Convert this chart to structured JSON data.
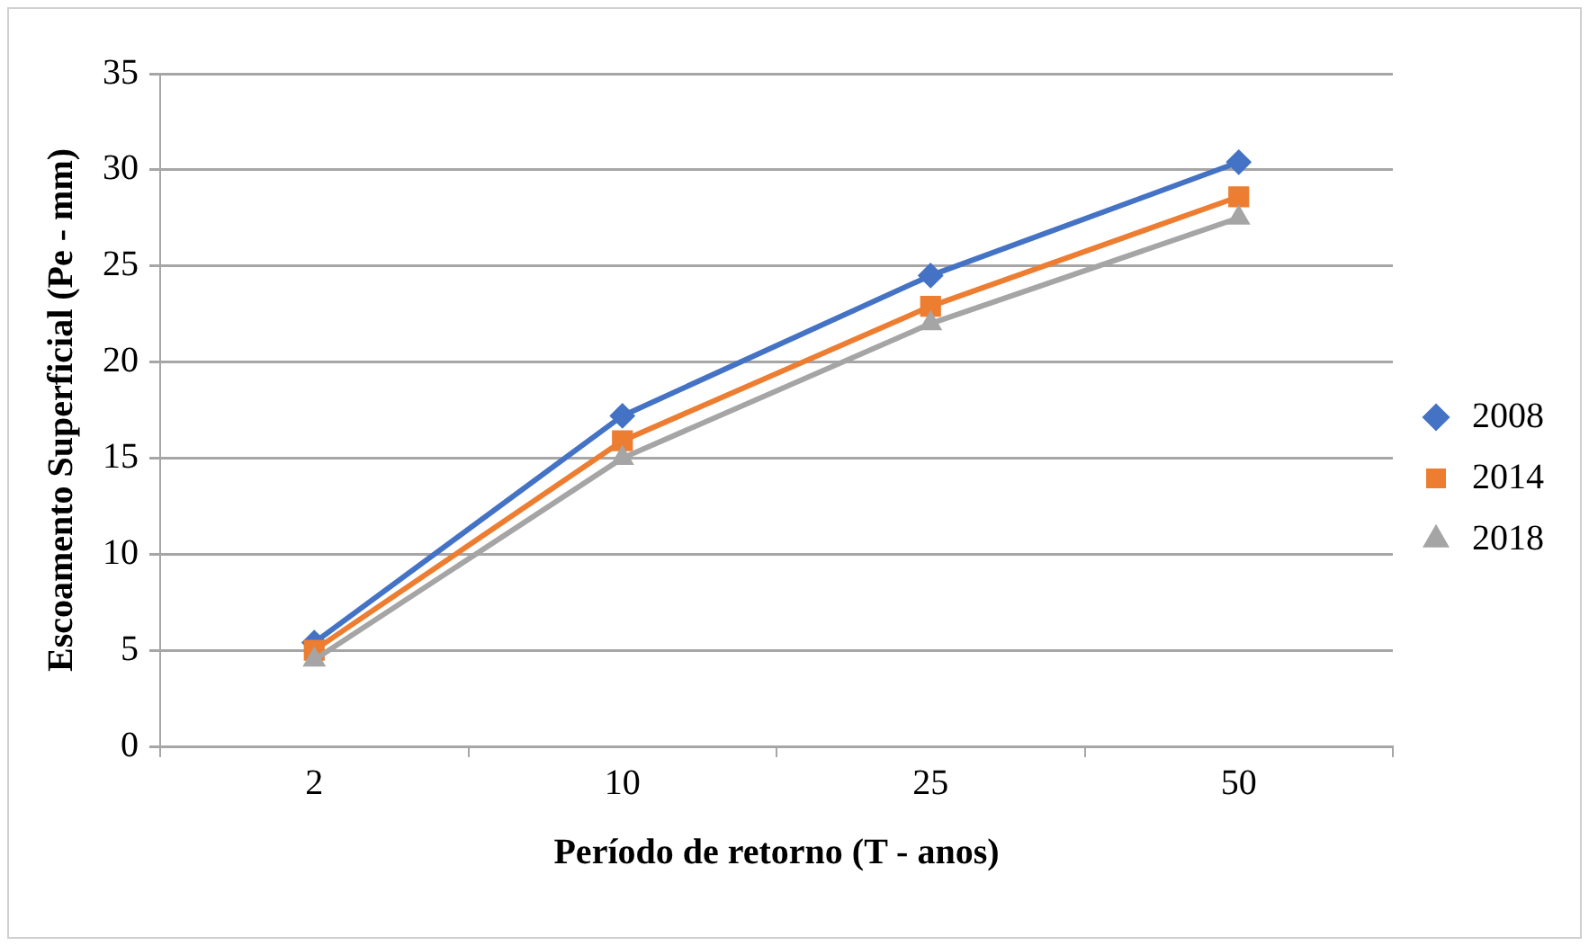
{
  "chart_data": {
    "type": "line",
    "xlabel": "Período de retorno (T - anos)",
    "ylabel": "Escoamento Superficial (Pe - mm)",
    "categories": [
      "2",
      "10",
      "25",
      "50"
    ],
    "series": [
      {
        "name": "2008",
        "color": "#4472c4",
        "marker": "diamond",
        "values": [
          5.4,
          17.2,
          24.5,
          30.4
        ]
      },
      {
        "name": "2014",
        "color": "#ed7d31",
        "marker": "square",
        "values": [
          5.0,
          15.9,
          22.9,
          28.6
        ]
      },
      {
        "name": "2018",
        "color": "#a5a5a5",
        "marker": "triangle",
        "values": [
          4.5,
          15.0,
          22.0,
          27.5
        ]
      }
    ],
    "ylim": [
      0,
      35
    ],
    "yticks": [
      0,
      5,
      10,
      15,
      20,
      25,
      30,
      35
    ],
    "grid": "y",
    "legend": "right"
  }
}
